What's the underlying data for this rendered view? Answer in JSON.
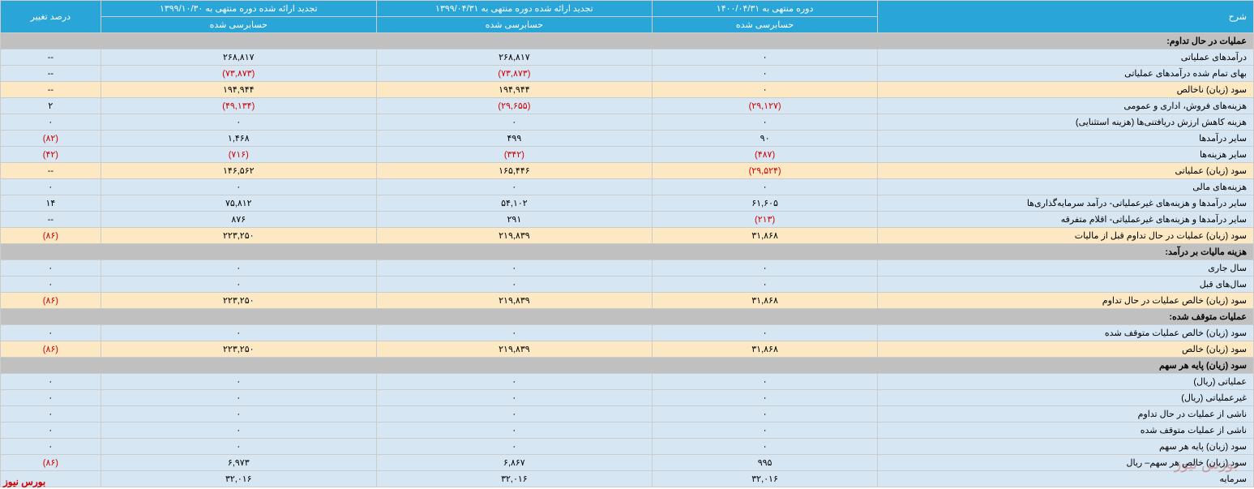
{
  "columns": {
    "desc": "شرح",
    "c1_top": "دوره منتهی به ۱۴۰۰/۰۴/۳۱",
    "c2_top": "تجدید ارائه شده دوره منتهی به ۱۳۹۹/۰۴/۳۱",
    "c3_top": "تجدید ارائه شده دوره منتهی به ۱۳۹۹/۱۰/۳۰",
    "pct": "درصد تغییر",
    "audited": "حسابرسی شده"
  },
  "col_widths": {
    "desc": "30%",
    "c1": "18%",
    "c2": "22%",
    "c3": "22%",
    "pct": "8%"
  },
  "header_bg": "#2aa5d8",
  "header_fg": "#ffffff",
  "row_blue_bg": "#d6e6f2",
  "row_cream_bg": "#fce9c3",
  "section_bg": "#c0c0c0",
  "neg_color": "#d00000",
  "rows": [
    {
      "type": "section",
      "label": "عملیات در حال تداوم:"
    },
    {
      "type": "data",
      "cls": "row-blue",
      "label": "درآمدهای عملیاتی",
      "c1": "۰",
      "c2": "۲۶۸,۸۱۷",
      "c3": "۲۶۸,۸۱۷",
      "pct": "--"
    },
    {
      "type": "data",
      "cls": "row-blue",
      "label": "بهای تمام شده درآمدهای عملیاتی",
      "c1": "۰",
      "c2": "(۷۳,۸۷۳)",
      "c2neg": true,
      "c3": "(۷۳,۸۷۳)",
      "c3neg": true,
      "pct": "--"
    },
    {
      "type": "data",
      "cls": "row-cream",
      "label": "سود (زیان) ناخالص",
      "c1": "۰",
      "c2": "۱۹۴,۹۴۴",
      "c3": "۱۹۴,۹۴۴",
      "pct": "--"
    },
    {
      "type": "data",
      "cls": "row-blue",
      "label": "هزینه‌های فروش، اداری و عمومی",
      "c1": "(۲۹,۱۲۷)",
      "c1neg": true,
      "c2": "(۲۹,۶۵۵)",
      "c2neg": true,
      "c3": "(۴۹,۱۳۴)",
      "c3neg": true,
      "pct": "۲"
    },
    {
      "type": "data",
      "cls": "row-blue",
      "label": "هزینه کاهش ارزش دریافتنی‌ها (هزینه استثنایی)",
      "c1": "۰",
      "c2": "۰",
      "c3": "۰",
      "pct": "۰"
    },
    {
      "type": "data",
      "cls": "row-blue",
      "label": "سایر درآمدها",
      "c1": "۹۰",
      "c2": "۴۹۹",
      "c3": "۱,۴۶۸",
      "pct": "(۸۲)",
      "pctneg": true
    },
    {
      "type": "data",
      "cls": "row-blue",
      "label": "سایر هزینه‌ها",
      "c1": "(۴۸۷)",
      "c1neg": true,
      "c2": "(۳۴۲)",
      "c2neg": true,
      "c3": "(۷۱۶)",
      "c3neg": true,
      "pct": "(۴۲)",
      "pctneg": true
    },
    {
      "type": "data",
      "cls": "row-cream",
      "label": "سود (زیان) عملیاتی",
      "c1": "(۲۹,۵۲۴)",
      "c1neg": true,
      "c2": "۱۶۵,۴۴۶",
      "c3": "۱۴۶,۵۶۲",
      "pct": "--"
    },
    {
      "type": "data",
      "cls": "row-blue",
      "label": "هزینه‌های مالی",
      "c1": "۰",
      "c2": "۰",
      "c3": "۰",
      "pct": "۰"
    },
    {
      "type": "data",
      "cls": "row-blue",
      "label": "سایر درآمدها و هزینه‌های غیرعملیاتی- درآمد سرمایه‌گذاری‌ها",
      "c1": "۶۱,۶۰۵",
      "c2": "۵۴,۱۰۲",
      "c3": "۷۵,۸۱۲",
      "pct": "۱۴"
    },
    {
      "type": "data",
      "cls": "row-blue",
      "label": "سایر درآمدها و هزینه‌های غیرعملیاتی- اقلام متفرقه",
      "c1": "(۲۱۳)",
      "c1neg": true,
      "c2": "۲۹۱",
      "c3": "۸۷۶",
      "pct": "--"
    },
    {
      "type": "data",
      "cls": "row-cream",
      "label": "سود (زیان) عملیات در حال تداوم قبل از مالیات",
      "c1": "۳۱,۸۶۸",
      "c2": "۲۱۹,۸۳۹",
      "c3": "۲۲۳,۲۵۰",
      "pct": "(۸۶)",
      "pctneg": true
    },
    {
      "type": "section",
      "label": "هزینه مالیات بر درآمد:"
    },
    {
      "type": "data",
      "cls": "row-blue",
      "label": "سال جاری",
      "c1": "۰",
      "c2": "۰",
      "c3": "۰",
      "pct": "۰"
    },
    {
      "type": "data",
      "cls": "row-blue",
      "label": "سال‌های قبل",
      "c1": "۰",
      "c2": "۰",
      "c3": "۰",
      "pct": "۰"
    },
    {
      "type": "data",
      "cls": "row-cream",
      "label": "سود (زیان) خالص عملیات در حال تداوم",
      "c1": "۳۱,۸۶۸",
      "c2": "۲۱۹,۸۳۹",
      "c3": "۲۲۳,۲۵۰",
      "pct": "(۸۶)",
      "pctneg": true
    },
    {
      "type": "section",
      "label": "عملیات متوقف شده:"
    },
    {
      "type": "data",
      "cls": "row-blue",
      "label": "سود (زیان) خالص عملیات متوقف شده",
      "c1": "۰",
      "c2": "۰",
      "c3": "۰",
      "pct": "۰"
    },
    {
      "type": "data",
      "cls": "row-cream",
      "label": "سود (زیان) خالص",
      "c1": "۳۱,۸۶۸",
      "c2": "۲۱۹,۸۳۹",
      "c3": "۲۲۳,۲۵۰",
      "pct": "(۸۶)",
      "pctneg": true
    },
    {
      "type": "section",
      "label": "سود (زیان) پایه هر سهم"
    },
    {
      "type": "data",
      "cls": "row-blue",
      "label": "عملیاتی (ریال)",
      "c1": "۰",
      "c2": "۰",
      "c3": "۰",
      "pct": "۰"
    },
    {
      "type": "data",
      "cls": "row-blue",
      "label": "غیرعملیاتی (ریال)",
      "c1": "۰",
      "c2": "۰",
      "c3": "۰",
      "pct": "۰"
    },
    {
      "type": "data",
      "cls": "row-blue",
      "label": "ناشی از عملیات در حال تداوم",
      "c1": "۰",
      "c2": "۰",
      "c3": "۰",
      "pct": "۰"
    },
    {
      "type": "data",
      "cls": "row-blue",
      "label": "ناشی از عملیات متوقف شده",
      "c1": "۰",
      "c2": "۰",
      "c3": "۰",
      "pct": "۰"
    },
    {
      "type": "data",
      "cls": "row-blue",
      "label": "سود (زیان) پایه هر سهم",
      "c1": "۰",
      "c2": "۰",
      "c3": "۰",
      "pct": "۰"
    },
    {
      "type": "data",
      "cls": "row-blue",
      "label": "سود (زیان) خالص هر سهم– ریال",
      "c1": "۹۹۵",
      "c2": "۶,۸۶۷",
      "c3": "۶,۹۷۳",
      "pct": "(۸۶)",
      "pctneg": true
    },
    {
      "type": "data",
      "cls": "row-blue",
      "label": "سرمایه",
      "c1": "۳۲,۰۱۶",
      "c2": "۳۲,۰۱۶",
      "c3": "۳۲,۰۱۶",
      "pct": ""
    }
  ],
  "watermark": "بورس نیوز",
  "footer": "بورس نیوز"
}
